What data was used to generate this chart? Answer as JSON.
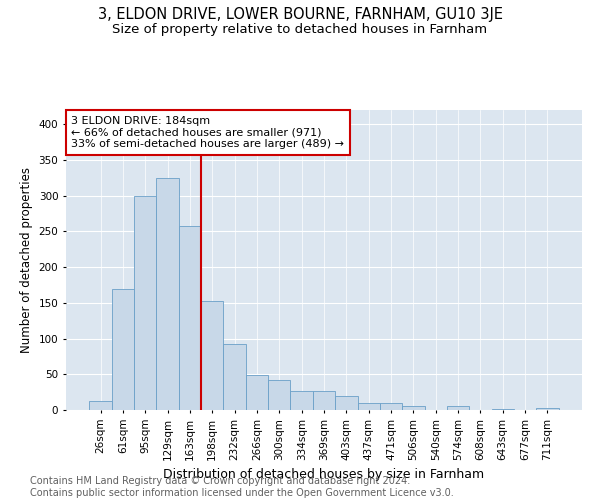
{
  "title1": "3, ELDON DRIVE, LOWER BOURNE, FARNHAM, GU10 3JE",
  "title2": "Size of property relative to detached houses in Farnham",
  "xlabel": "Distribution of detached houses by size in Farnham",
  "ylabel": "Number of detached properties",
  "footer": "Contains HM Land Registry data © Crown copyright and database right 2024.\nContains public sector information licensed under the Open Government Licence v3.0.",
  "categories": [
    "26sqm",
    "61sqm",
    "95sqm",
    "129sqm",
    "163sqm",
    "198sqm",
    "232sqm",
    "266sqm",
    "300sqm",
    "334sqm",
    "369sqm",
    "403sqm",
    "437sqm",
    "471sqm",
    "506sqm",
    "540sqm",
    "574sqm",
    "608sqm",
    "643sqm",
    "677sqm",
    "711sqm"
  ],
  "values": [
    13,
    170,
    300,
    325,
    258,
    152,
    92,
    49,
    42,
    26,
    26,
    20,
    10,
    10,
    5,
    0,
    6,
    0,
    2,
    0,
    3
  ],
  "bar_color": "#c8d8e8",
  "bar_edge_color": "#6a9fc8",
  "vline_x_index": 4.5,
  "vline_color": "#cc0000",
  "annotation_text": "3 ELDON DRIVE: 184sqm\n← 66% of detached houses are smaller (971)\n33% of semi-detached houses are larger (489) →",
  "annotation_box_color": "white",
  "annotation_box_edge": "#cc0000",
  "ylim": [
    0,
    420
  ],
  "yticks": [
    0,
    50,
    100,
    150,
    200,
    250,
    300,
    350,
    400
  ],
  "background_color": "#dce6f0",
  "title1_fontsize": 10.5,
  "title2_fontsize": 9.5,
  "xlabel_fontsize": 9,
  "ylabel_fontsize": 8.5,
  "tick_fontsize": 7.5,
  "annotation_fontsize": 8,
  "footer_fontsize": 7,
  "footer_color": "#606060"
}
